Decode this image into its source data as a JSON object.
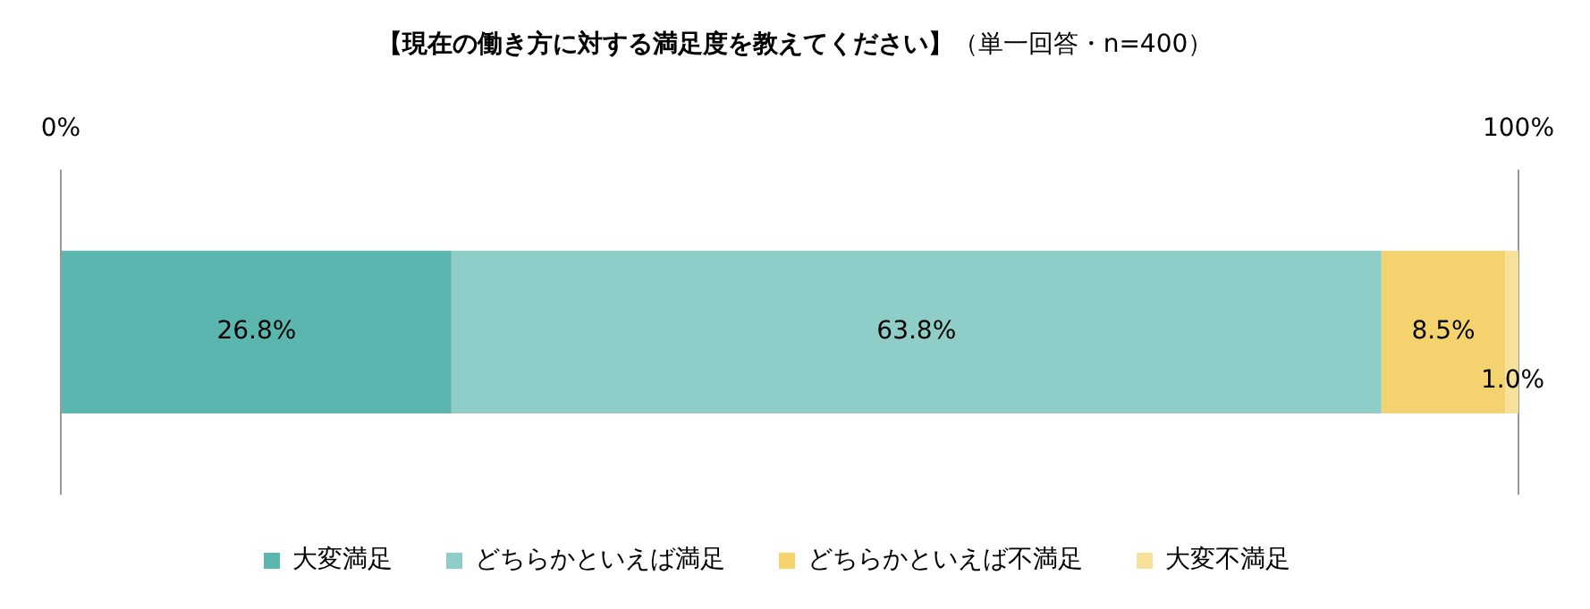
{
  "chart_data": {
    "type": "bar",
    "orientation": "horizontal",
    "stacked": true,
    "title": "【現在の働き方に対する満足度を教えてください】",
    "subtitle": "（単一回答・n=400）",
    "categories": [
      null
    ],
    "series": [
      {
        "name": "大変満足",
        "color": "#5bb6b0",
        "values": [
          26.8
        ],
        "value_labels": [
          "26.8%"
        ]
      },
      {
        "name": "どちらかといえば満足",
        "color": "#8fcdc8",
        "values": [
          63.8
        ],
        "value_labels": [
          "63.8%"
        ]
      },
      {
        "name": "どちらかといえば不満足",
        "color": "#f4d36e",
        "values": [
          8.5
        ],
        "value_labels": [
          "8.5%"
        ]
      },
      {
        "name": "大変不満足",
        "color": "#f7e09a",
        "values": [
          1.0
        ],
        "value_labels": [
          "1.0%"
        ]
      }
    ],
    "xlim": [
      0,
      100
    ],
    "xticks": [
      {
        "value": 0,
        "label": "0%"
      },
      {
        "value": 100,
        "label": "100%"
      }
    ],
    "grid": "x",
    "legend": "bottom"
  }
}
